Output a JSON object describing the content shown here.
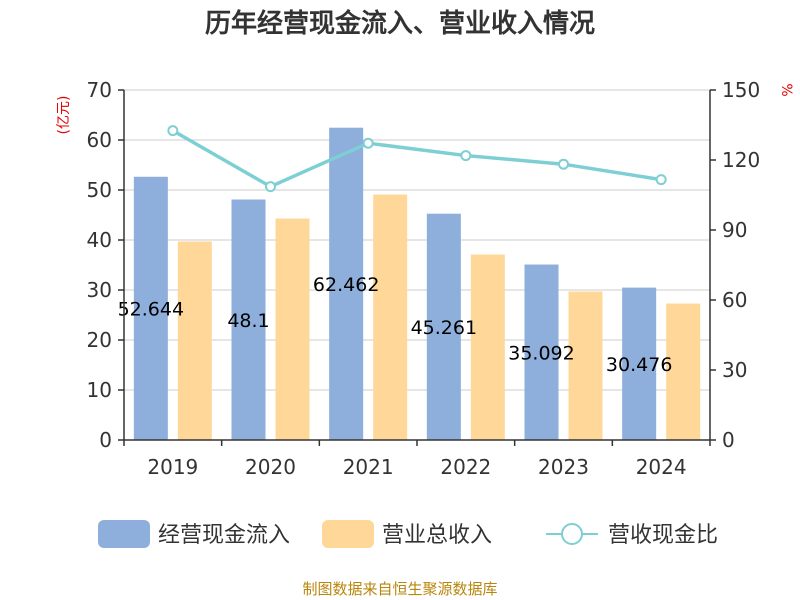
{
  "title": "历年经营现金流入、营业收入情况",
  "source": "制图数据来自恒生聚源数据库",
  "chart_data": {
    "type": "bar",
    "title": "历年经营现金流入、营业收入情况",
    "categories": [
      "2019",
      "2020",
      "2021",
      "2022",
      "2023",
      "2024"
    ],
    "series": [
      {
        "name": "经营现金流入",
        "type": "bar",
        "axis": "left",
        "color": "#8eaedb",
        "values": [
          52.644,
          48.1,
          62.462,
          45.261,
          35.092,
          30.476
        ]
      },
      {
        "name": "营业总收入",
        "type": "bar",
        "axis": "left",
        "color": "#ffd899",
        "values": [
          39.7,
          44.3,
          49.1,
          37.1,
          29.7,
          27.3
        ]
      },
      {
        "name": "营收现金比",
        "type": "line",
        "axis": "right",
        "color": "#7ecfd4",
        "values": [
          132.6,
          108.6,
          127.2,
          121.9,
          118.2,
          111.6
        ]
      }
    ],
    "bar_labels": [
      "52.644",
      "48.1",
      "62.462",
      "45.261",
      "35.092",
      "30.476"
    ],
    "left_axis": {
      "unit": "(亿元)",
      "ylim": [
        0,
        70
      ],
      "ticks": [
        "0",
        "10",
        "20",
        "30",
        "40",
        "50",
        "60",
        "70"
      ]
    },
    "right_axis": {
      "unit": "%",
      "ylim": [
        0,
        150
      ],
      "ticks": [
        "0",
        "30",
        "60",
        "90",
        "120",
        "150"
      ]
    },
    "grid": true,
    "legend_position": "bottom"
  }
}
